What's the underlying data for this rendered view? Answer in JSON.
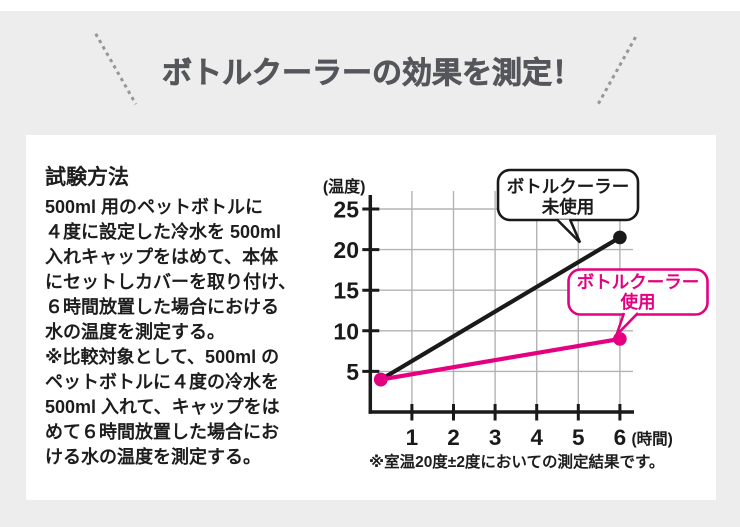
{
  "title": "ボトルクーラーの効果を測定！",
  "method": {
    "heading": "試験方法",
    "lines": [
      "500ml 用のペットボトルに",
      "４度に設定した冷水を 500ml",
      "入れキャップをはめて、本体",
      "にセットしカバーを取り付け、",
      "６時間放置した場合における",
      "水の温度を測定する。",
      "※比較対象として、500ml の",
      "ペットボトルに４度の冷水を",
      "500ml 入れて、キャップをは",
      "めて６時間放置した場合にお",
      "ける水の温度を測定する。"
    ]
  },
  "chart_data": {
    "type": "line",
    "x": [
      0,
      6
    ],
    "series": [
      {
        "name": "ボトルクーラー未使用",
        "color": "#1a1a1a",
        "values": [
          4,
          21.5
        ]
      },
      {
        "name": "ボトルクーラー使用",
        "color": "#e4007f",
        "values": [
          4,
          9
        ]
      }
    ],
    "ylabel": "(温度)",
    "xlabel": "(時間)",
    "yticks": [
      5,
      10,
      15,
      20,
      25
    ],
    "xticks": [
      1,
      2,
      3,
      4,
      5,
      6
    ],
    "ylim": [
      0,
      27
    ],
    "xlim": [
      0,
      6.4
    ],
    "grid": true,
    "note": "※室温20度±2度においての測定結果です。",
    "callouts": [
      {
        "lines": [
          "ボトルクーラー",
          "未使用"
        ],
        "color": "#1a1a1a"
      },
      {
        "lines": [
          "ボトルクーラー",
          "使用"
        ],
        "color": "#e4007f"
      }
    ]
  },
  "colors": {
    "background": "#ededed",
    "card": "#ffffff",
    "title_text": "#55565b",
    "body_text": "#1d1d1d",
    "accent_pink": "#e4007f",
    "line_black": "#1a1a1a",
    "grid": "#b3b3b3"
  }
}
